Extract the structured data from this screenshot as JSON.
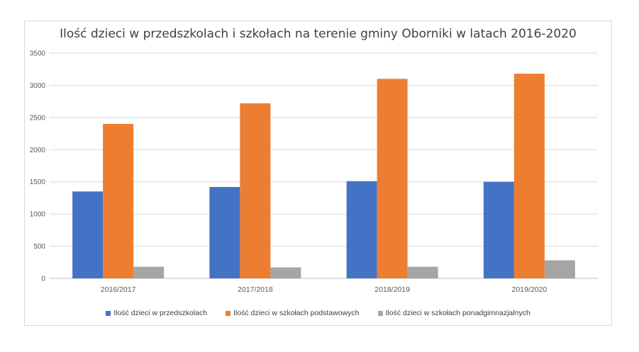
{
  "chart_data": {
    "type": "bar",
    "title": "Ilość dzieci w przedszkolach i szkołach na terenie gminy Oborniki w latach 2016-2020",
    "xlabel": "",
    "ylabel": "",
    "categories": [
      "2016/2017",
      "2017/2018",
      "2018/2019",
      "2019/2020"
    ],
    "ylim": [
      0,
      3500
    ],
    "yticks": [
      0,
      500,
      1000,
      1500,
      2000,
      2500,
      3000,
      3500
    ],
    "grid": true,
    "legend_position": "bottom",
    "series": [
      {
        "name": "Ilość dzieci w przedszkolach",
        "color": "#4472c4",
        "values": [
          1350,
          1420,
          1510,
          1500
        ]
      },
      {
        "name": "Ilość dzieci w szkołach podstawowych",
        "color": "#ed7d31",
        "values": [
          2400,
          2720,
          3100,
          3180
        ]
      },
      {
        "name": "Ilość dzieci w szkołach ponadgimnazjalnych",
        "color": "#a5a5a5",
        "values": [
          180,
          170,
          180,
          280
        ]
      }
    ]
  }
}
